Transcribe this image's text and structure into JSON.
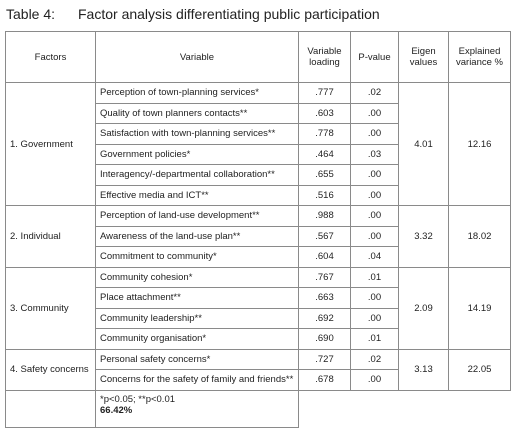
{
  "table": {
    "label": "Table 4:",
    "title": "Factor analysis differentiating public participation",
    "header": [
      "Factors",
      "Variable",
      "Variable loading",
      "P-value",
      "Eigen values",
      "Explained variance %"
    ],
    "groups": [
      {
        "factor": "1. Government",
        "eigen": "4.01",
        "variance": "12.16",
        "rows": [
          [
            "Perception of town-planning services*",
            ".777",
            ".02"
          ],
          [
            "Quality of town planners contacts**",
            ".603",
            ".00"
          ],
          [
            "Satisfaction with town-planning services**",
            ".778",
            ".00"
          ],
          [
            "Government policies*",
            ".464",
            ".03"
          ],
          [
            "Interagency/-departmental collaboration**",
            ".655",
            ".00"
          ],
          [
            "Effective media and ICT**",
            ".516",
            ".00"
          ]
        ]
      },
      {
        "factor": "2. Individual",
        "eigen": "3.32",
        "variance": "18.02",
        "rows": [
          [
            "Perception of land-use development**",
            ".988",
            ".00"
          ],
          [
            "Awareness of the land-use plan**",
            ".567",
            ".00"
          ],
          [
            "Commitment to community*",
            ".604",
            ".04"
          ]
        ]
      },
      {
        "factor": "3. Community",
        "eigen": "2.09",
        "variance": "14.19",
        "rows": [
          [
            "Community cohesion*",
            ".767",
            ".01"
          ],
          [
            "Place attachment**",
            ".663",
            ".00"
          ],
          [
            "Community leadership**",
            ".692",
            ".00"
          ],
          [
            "Community organisation*",
            ".690",
            ".01"
          ]
        ]
      },
      {
        "factor": "4. Safety concerns",
        "eigen": "3.13",
        "variance": "22.05",
        "rows": [
          [
            "Personal safety concerns*",
            ".727",
            ".02"
          ],
          [
            "Concerns for the safety of family and friends**",
            ".678",
            ".00"
          ]
        ]
      }
    ],
    "footnote": "*p<0.05; **p<0.01",
    "total": "66.42%"
  }
}
